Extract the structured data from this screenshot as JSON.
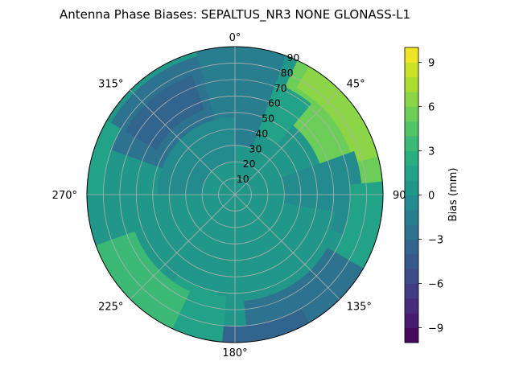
{
  "chart_data": {
    "type": "heatmap",
    "subtype": "polar-contour",
    "title": "Antenna Phase Biases: SEPALTUS_NR3    NONE GLONASS-L1",
    "angular_ticks": [
      {
        "label": "0°",
        "deg": 0
      },
      {
        "label": "45°",
        "deg": 45
      },
      {
        "label": "90°",
        "deg": 90
      },
      {
        "label": "135°",
        "deg": 135
      },
      {
        "label": "180°",
        "deg": 180
      },
      {
        "label": "225°",
        "deg": 225
      },
      {
        "label": "270°",
        "deg": 270
      },
      {
        "label": "315°",
        "deg": 315
      }
    ],
    "radial_ticks": [
      10,
      20,
      30,
      40,
      50,
      60,
      70,
      80,
      90
    ],
    "radial_range": [
      0,
      90
    ],
    "colorbar": {
      "label": "Bias (mm)",
      "range": [
        -10,
        10
      ],
      "levels": 20,
      "ticks": [
        -9,
        -6,
        -3,
        0,
        3,
        6,
        9
      ],
      "colormap": "viridis"
    },
    "grid": true,
    "regions": [
      {
        "az_start": 25,
        "az_end": 85,
        "r_start": 55,
        "r_end": 90,
        "value": 5.0
      },
      {
        "az_start": 30,
        "az_end": 75,
        "r_start": 75,
        "r_end": 90,
        "value": 6.0
      },
      {
        "az_start": 20,
        "az_end": 40,
        "r_start": 40,
        "r_end": 70,
        "value": 1.5
      },
      {
        "az_start": 70,
        "az_end": 110,
        "r_start": 30,
        "r_end": 75,
        "value": -1.0
      },
      {
        "az_start": 85,
        "az_end": 135,
        "r_start": 70,
        "r_end": 90,
        "value": 1.0
      },
      {
        "az_start": 120,
        "az_end": 175,
        "r_start": 65,
        "r_end": 90,
        "value": -2.5
      },
      {
        "az_start": 150,
        "az_end": 185,
        "r_start": 80,
        "r_end": 90,
        "value": -3.5
      },
      {
        "az_start": 185,
        "az_end": 215,
        "r_start": 60,
        "r_end": 90,
        "value": 1.0
      },
      {
        "az_start": 205,
        "az_end": 250,
        "r_start": 65,
        "r_end": 90,
        "value": 3.0
      },
      {
        "az_start": 215,
        "az_end": 240,
        "r_start": 80,
        "r_end": 90,
        "value": 3.5
      },
      {
        "az_start": 250,
        "az_end": 290,
        "r_start": 50,
        "r_end": 90,
        "value": 0.5
      },
      {
        "az_start": 290,
        "az_end": 350,
        "r_start": 45,
        "r_end": 85,
        "value": -2.5
      },
      {
        "az_start": 300,
        "az_end": 340,
        "r_start": 55,
        "r_end": 75,
        "value": -3.5
      },
      {
        "az_start": 345,
        "az_end": 380,
        "r_start": 30,
        "r_end": 90,
        "value": -1.5
      },
      {
        "az_start": 270,
        "az_end": 360,
        "r_start": 20,
        "r_end": 45,
        "value": -1.0
      },
      {
        "az_start": 100,
        "az_end": 190,
        "r_start": 15,
        "r_end": 60,
        "value": 0.8
      },
      {
        "az_start": 270,
        "az_end": 300,
        "r_start": 80,
        "r_end": 90,
        "value": 1.5
      }
    ],
    "background_value": 0.0
  }
}
